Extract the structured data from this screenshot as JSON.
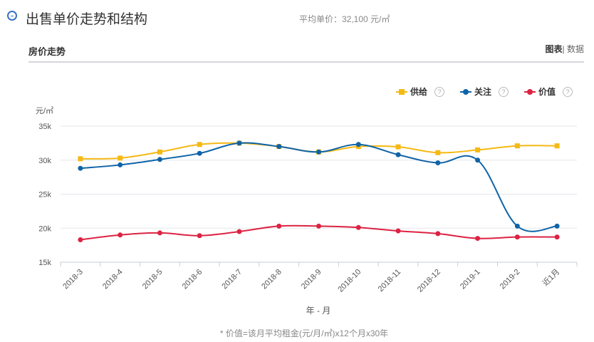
{
  "header": {
    "title": "出售单价走势和结构",
    "avg_price": "平均单价：32,100 元/㎡"
  },
  "section": {
    "title": "房价走势",
    "view_chart": "图表",
    "view_sep": "|",
    "view_data": " 数据"
  },
  "legend": [
    {
      "name": "供给",
      "color": "#f5b914",
      "marker": "square",
      "help": "?"
    },
    {
      "name": "关注",
      "color": "#0f64a8",
      "marker": "circle",
      "help": "?"
    },
    {
      "name": "价值",
      "color": "#dc2343",
      "marker": "circle",
      "help": "?"
    }
  ],
  "footnote": "* 价值=该月平均租金(元/月/㎡)x12个月x30年",
  "chart_data": {
    "type": "line",
    "smooth": true,
    "ylabel": "元/㎡",
    "xlabel": "年 - 月",
    "ylim": [
      15000,
      35000
    ],
    "yticks": [
      {
        "v": 15000,
        "label": "15k"
      },
      {
        "v": 20000,
        "label": "20k"
      },
      {
        "v": 25000,
        "label": "25k"
      },
      {
        "v": 30000,
        "label": "30k"
      },
      {
        "v": 35000,
        "label": "35k"
      }
    ],
    "grid": true,
    "legend_position": "top-right",
    "categories": [
      "2018-3",
      "2018-4",
      "2018-5",
      "2018-6",
      "2018-7",
      "2018-8",
      "2018-9",
      "2018-10",
      "2018-11",
      "2018-12",
      "2019-1",
      "2019-2",
      "近1月"
    ],
    "series": [
      {
        "name": "供给",
        "values": [
          30200,
          30300,
          31200,
          32300,
          32500,
          32000,
          31200,
          32000,
          31950,
          31100,
          31500,
          32100,
          32100
        ]
      },
      {
        "name": "关注",
        "values": [
          28800,
          29300,
          30100,
          31000,
          32500,
          32000,
          31200,
          32300,
          30800,
          29600,
          30000,
          20300,
          20300
        ]
      },
      {
        "name": "价值",
        "values": [
          18300,
          19000,
          19300,
          18900,
          19500,
          20300,
          20300,
          20100,
          19600,
          19200,
          18500,
          18700,
          18700
        ]
      }
    ]
  }
}
